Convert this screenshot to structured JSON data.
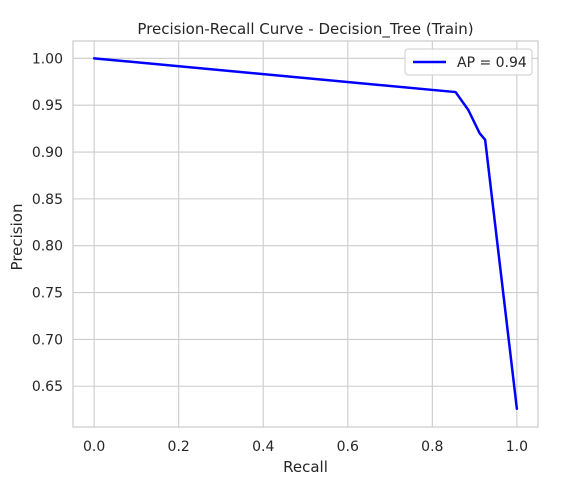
{
  "chart_data": {
    "type": "line",
    "title": "Precision-Recall Curve - Decision_Tree (Train)",
    "xlabel": "Recall",
    "ylabel": "Precision",
    "xlim": [
      -0.05,
      1.05
    ],
    "ylim": [
      0.6065,
      1.0185
    ],
    "xticks": [
      0.0,
      0.2,
      0.4,
      0.6,
      0.8,
      1.0
    ],
    "xtick_labels": [
      "0.0",
      "0.2",
      "0.4",
      "0.6",
      "0.8",
      "1.0"
    ],
    "yticks": [
      0.65,
      0.7,
      0.75,
      0.8,
      0.85,
      0.9,
      0.95,
      1.0
    ],
    "ytick_labels": [
      "0.65",
      "0.70",
      "0.75",
      "0.80",
      "0.85",
      "0.90",
      "0.95",
      "1.00"
    ],
    "grid": true,
    "legend_position": "upper right",
    "series": [
      {
        "name": "AP = 0.94",
        "color": "#0000ff",
        "x": [
          0.0,
          0.855,
          0.885,
          0.912,
          0.925,
          1.0
        ],
        "y": [
          1.0,
          0.964,
          0.945,
          0.92,
          0.913,
          0.626
        ]
      }
    ]
  }
}
